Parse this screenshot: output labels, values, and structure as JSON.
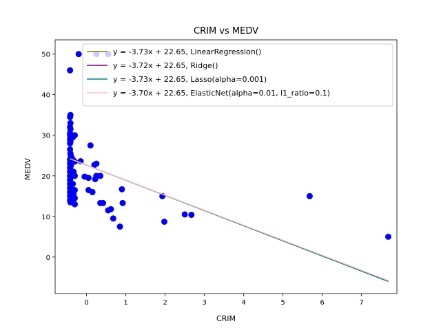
{
  "chart_data": {
    "type": "scatter",
    "title": "CRIM vs MEDV",
    "xlabel": "CRIM",
    "ylabel": "MEDV",
    "xlim": [
      -0.8,
      7.9
    ],
    "ylim": [
      -9.0,
      53.5
    ],
    "xticks": [
      0,
      1,
      2,
      3,
      4,
      5,
      6,
      7
    ],
    "yticks": [
      0,
      10,
      20,
      30,
      40,
      50
    ],
    "legend_position": "top-right",
    "grid": false,
    "points_color": "#0000ff",
    "points": [
      [
        -0.42,
        46.0
      ],
      [
        -0.2,
        50.0
      ],
      [
        0.25,
        50.0
      ],
      [
        0.55,
        50.0
      ],
      [
        -0.41,
        35.0
      ],
      [
        -0.42,
        34.5
      ],
      [
        -0.41,
        33.0
      ],
      [
        -0.42,
        32.0
      ],
      [
        -0.41,
        31.5
      ],
      [
        -0.42,
        30.5
      ],
      [
        -0.42,
        30.0
      ],
      [
        -0.41,
        29.5
      ],
      [
        -0.42,
        29.0
      ],
      [
        -0.41,
        28.5
      ],
      [
        -0.42,
        28.0
      ],
      [
        -0.35,
        29.5
      ],
      [
        -0.3,
        30.0
      ],
      [
        -0.42,
        26.5
      ],
      [
        -0.41,
        25.5
      ],
      [
        -0.4,
        25.0
      ],
      [
        -0.38,
        24.5
      ],
      [
        -0.42,
        24.0
      ],
      [
        -0.41,
        23.5
      ],
      [
        -0.42,
        23.0
      ],
      [
        -0.4,
        22.5
      ],
      [
        -0.42,
        22.0
      ],
      [
        -0.41,
        21.5
      ],
      [
        -0.42,
        21.0
      ],
      [
        -0.4,
        20.5
      ],
      [
        -0.42,
        20.0
      ],
      [
        -0.41,
        19.5
      ],
      [
        -0.42,
        19.0
      ],
      [
        -0.41,
        18.5
      ],
      [
        -0.42,
        18.0
      ],
      [
        -0.4,
        17.5
      ],
      [
        -0.42,
        17.0
      ],
      [
        -0.41,
        16.5
      ],
      [
        -0.42,
        16.0
      ],
      [
        -0.41,
        15.5
      ],
      [
        -0.42,
        15.0
      ],
      [
        -0.4,
        14.5
      ],
      [
        -0.42,
        14.0
      ],
      [
        -0.41,
        13.5
      ],
      [
        -0.35,
        24.0
      ],
      [
        -0.3,
        23.5
      ],
      [
        -0.33,
        21.0
      ],
      [
        -0.3,
        20.0
      ],
      [
        -0.35,
        18.0
      ],
      [
        -0.3,
        16.5
      ],
      [
        -0.33,
        15.5
      ],
      [
        -0.3,
        14.5
      ],
      [
        -0.35,
        14.0
      ],
      [
        -0.3,
        13.0
      ],
      [
        -0.15,
        23.6
      ],
      [
        -0.05,
        19.8
      ],
      [
        0.05,
        19.5
      ],
      [
        0.1,
        27.5
      ],
      [
        0.2,
        22.7
      ],
      [
        0.25,
        23.0
      ],
      [
        0.25,
        20.0
      ],
      [
        0.22,
        19.2
      ],
      [
        0.35,
        20.0
      ],
      [
        0.05,
        16.5
      ],
      [
        0.15,
        16.0
      ],
      [
        0.35,
        13.3
      ],
      [
        0.42,
        13.3
      ],
      [
        0.55,
        11.5
      ],
      [
        0.62,
        11.8
      ],
      [
        0.68,
        9.5
      ],
      [
        0.85,
        7.5
      ],
      [
        0.9,
        16.7
      ],
      [
        0.92,
        13.3
      ],
      [
        1.93,
        15.0
      ],
      [
        1.98,
        8.7
      ],
      [
        2.5,
        10.5
      ],
      [
        2.67,
        10.4
      ],
      [
        5.68,
        15.0
      ],
      [
        7.68,
        5.0
      ]
    ],
    "line_x": [
      -0.42,
      7.68
    ],
    "series": [
      {
        "name": "y = -3.73x + 22.65, LinearRegression()",
        "slope": -3.73,
        "intercept": 22.65,
        "color": "#808000"
      },
      {
        "name": "y = -3.72x + 22.65, Ridge()",
        "slope": -3.72,
        "intercept": 22.65,
        "color": "#800080"
      },
      {
        "name": "y = -3.73x + 22.65, Lasso(alpha=0.001)",
        "slope": -3.73,
        "intercept": 22.65,
        "color": "#008080"
      },
      {
        "name": "y = -3.70x + 22.65, ElasticNet(alpha=0.01, l1_ratio=0.1)",
        "slope": -3.7,
        "intercept": 22.65,
        "color": "#ffc0cb"
      }
    ]
  }
}
